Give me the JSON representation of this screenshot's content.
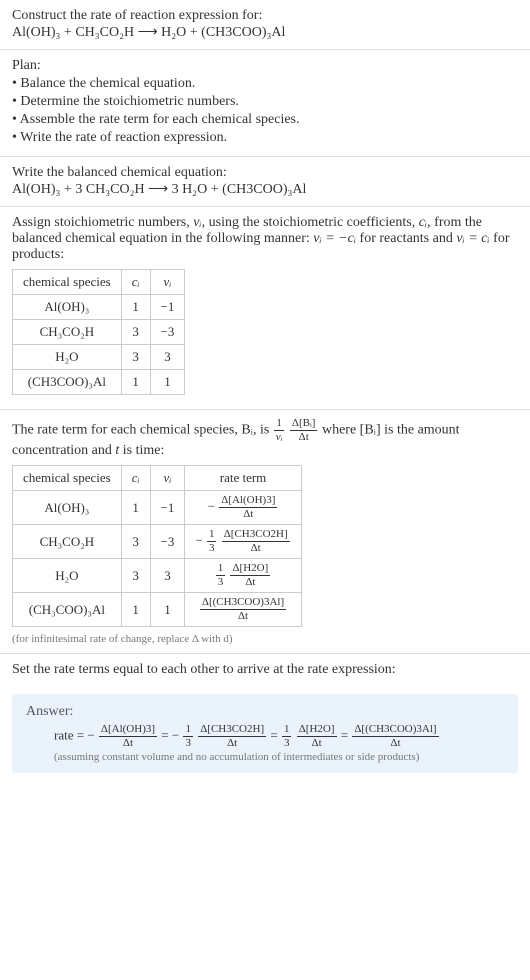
{
  "header": {
    "prompt": "Construct the rate of reaction expression for:",
    "equation": "Al(OH)₃ + CH₃CO₂H  ⟶  H₂O + (CH3COO)₃Al"
  },
  "plan": {
    "title": "Plan:",
    "items": [
      "• Balance the chemical equation.",
      "• Determine the stoichiometric numbers.",
      "• Assemble the rate term for each chemical species.",
      "• Write the rate of reaction expression."
    ]
  },
  "balanced": {
    "title": "Write the balanced chemical equation:",
    "equation": "Al(OH)₃ + 3 CH₃CO₂H  ⟶  3 H₂O + (CH3COO)₃Al"
  },
  "stoich": {
    "intro_a": "Assign stoichiometric numbers, ",
    "nu": "νᵢ",
    "intro_b": ", using the stoichiometric coefficients, ",
    "ci": "cᵢ",
    "intro_c": ", from the balanced chemical equation in the following manner: ",
    "rel1": "νᵢ = −cᵢ",
    "intro_d": " for reactants and ",
    "rel2": "νᵢ = cᵢ",
    "intro_e": " for products:",
    "table": {
      "cols": [
        "chemical species",
        "cᵢ",
        "νᵢ"
      ],
      "rows": [
        [
          "Al(OH)₃",
          "1",
          "−1"
        ],
        [
          "CH₃CO₂H",
          "3",
          "−3"
        ],
        [
          "H₂O",
          "3",
          "3"
        ],
        [
          "(CH3COO)₃Al",
          "1",
          "1"
        ]
      ]
    }
  },
  "rateterm": {
    "intro_a": "The rate term for each chemical species, Bᵢ, is ",
    "intro_b": " where [Bᵢ] is the amount concentration and ",
    "intro_c": " is time:",
    "t_label": "t",
    "outer_num": "1",
    "outer_den": "νᵢ",
    "inner_num": "Δ[Bᵢ]",
    "inner_den": "Δt",
    "table": {
      "cols": [
        "chemical species",
        "cᵢ",
        "νᵢ",
        "rate term"
      ],
      "rows": [
        {
          "sp": "Al(OH)₃",
          "c": "1",
          "v": "−1",
          "pre": "−",
          "on": "",
          "od": "",
          "num": "Δ[Al(OH)3]",
          "den": "Δt"
        },
        {
          "sp": "CH₃CO₂H",
          "c": "3",
          "v": "−3",
          "pre": "−",
          "on": "1",
          "od": "3",
          "num": "Δ[CH3CO2H]",
          "den": "Δt"
        },
        {
          "sp": "H₂O",
          "c": "3",
          "v": "3",
          "pre": "",
          "on": "1",
          "od": "3",
          "num": "Δ[H2O]",
          "den": "Δt"
        },
        {
          "sp": "(CH₃COO)₃Al",
          "c": "1",
          "v": "1",
          "pre": "",
          "on": "",
          "od": "",
          "num": "Δ[(CH3COO)3Al]",
          "den": "Δt"
        }
      ]
    },
    "note": "(for infinitesimal rate of change, replace Δ with d)"
  },
  "final": {
    "title": "Set the rate terms equal to each other to arrive at the rate expression:"
  },
  "answer": {
    "label": "Answer:",
    "prefix": "rate = −",
    "t1": {
      "num": "Δ[Al(OH)3]",
      "den": "Δt"
    },
    "eq1": " = −",
    "c2": {
      "num": "1",
      "den": "3"
    },
    "t2": {
      "num": "Δ[CH3CO2H]",
      "den": "Δt"
    },
    "eq2": " = ",
    "c3": {
      "num": "1",
      "den": "3"
    },
    "t3": {
      "num": "Δ[H2O]",
      "den": "Δt"
    },
    "eq3": " = ",
    "t4": {
      "num": "Δ[(CH3COO)3Al]",
      "den": "Δt"
    },
    "assume": "(assuming constant volume and no accumulation of intermediates or side products)"
  },
  "colors": {
    "answer_bg": "#eaf2fb",
    "border": "#dddddd",
    "table_border": "#cccccc",
    "text": "#333333",
    "note": "#777777"
  }
}
